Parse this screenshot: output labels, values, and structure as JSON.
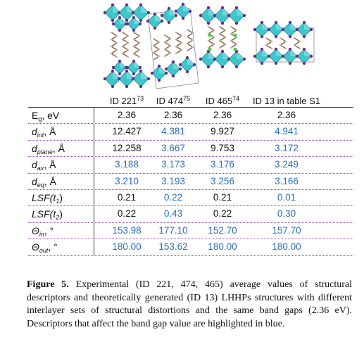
{
  "figure": {
    "columns": [
      {
        "label": "ID 221",
        "ref": "73"
      },
      {
        "label": "ID 474",
        "ref": "75"
      },
      {
        "label": "ID 465",
        "ref": "74"
      },
      {
        "label": "ID 13 in table S1"
      }
    ],
    "highlight_color": "#2a6fc2",
    "rows": [
      {
        "symbol": "E",
        "sub": "g",
        "unit": ", eV",
        "italic": false,
        "cells": [
          "2.36",
          "2.36",
          "2.36",
          "2.36"
        ],
        "highlight": [
          false,
          false,
          false,
          false
        ]
      },
      {
        "symbol": "d",
        "sub": "int",
        "unit": ", Å",
        "italic": true,
        "cells": [
          "12.427",
          "4.381",
          "9.927",
          "4.941"
        ],
        "highlight": [
          false,
          true,
          false,
          true
        ]
      },
      {
        "symbol": "d",
        "sub": "plane",
        "unit": ", Å",
        "italic": true,
        "cells": [
          "12.258",
          "3.667",
          "9.753",
          "3.172"
        ],
        "highlight": [
          false,
          true,
          false,
          true
        ]
      },
      {
        "symbol": "d",
        "sub": "ax",
        "unit": ", Å",
        "italic": true,
        "cells": [
          "3.188",
          "3.173",
          "3.176",
          "3.249"
        ],
        "highlight": [
          true,
          true,
          true,
          true
        ]
      },
      {
        "symbol": "d",
        "sub": "eq",
        "unit": ", Å",
        "italic": true,
        "cells": [
          "3.210",
          "3.193",
          "3.256",
          "3.166"
        ],
        "highlight": [
          true,
          true,
          true,
          true
        ]
      },
      {
        "symbol": "LSF(t",
        "sub": "1",
        "unit": ")",
        "italic": true,
        "cells": [
          "0.21",
          "0.22",
          "0.21",
          "0.01"
        ],
        "highlight": [
          false,
          true,
          false,
          true
        ]
      },
      {
        "symbol": "LSF(t",
        "sub": "2",
        "unit": ")",
        "italic": true,
        "cells": [
          "0.22",
          "0.43",
          "0.22",
          "0.30"
        ],
        "highlight": [
          false,
          true,
          false,
          true
        ]
      },
      {
        "symbol": "Θ",
        "sub": "in",
        "unit": ", °",
        "italic": true,
        "cells": [
          "153.98",
          "177.10",
          "152.70",
          "157.70"
        ],
        "highlight": [
          true,
          true,
          true,
          true
        ]
      },
      {
        "symbol": "Θ",
        "sub": "out",
        "unit": ", °",
        "italic": true,
        "cells": [
          "180.00",
          "153.62",
          "180.00",
          "180.00"
        ],
        "highlight": [
          true,
          true,
          true,
          true
        ]
      }
    ]
  },
  "caption": {
    "label": "Figure 5.",
    "text": "Experimental (ID 221, 474, 465) average values of structural descriptors and theoretically generated (ID 13) LHHPs structures with different interlayer sets of structural distortions and the same band gaps (2.36 eV). Descriptors that affect the band gap value are highlighted in blue."
  }
}
